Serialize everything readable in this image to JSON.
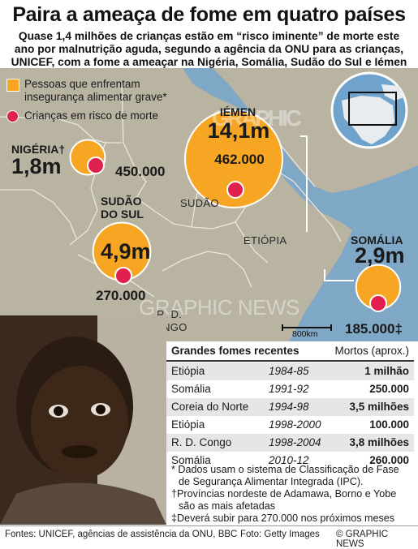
{
  "header": {
    "title": "Paira a ameaça de fome em quatro países",
    "subtitle_lines": [
      "Quase 1,4 milhões de crianças estão em “risco iminente” de morte este",
      "ano por malnutrição aguda, segundo a agência da ONU para as crianças,",
      "UNICEF, com a fome a ameaçar na Nigéria, Somália, Sudão do Sul e Iémen"
    ]
  },
  "legend": {
    "food_insecure": "Pessoas que enfrentam insegurança alimentar grave*",
    "children_risk": "Crianças em risco de morte",
    "colors": {
      "food_insecure": "#f6a623",
      "children_risk": "#e0204f"
    }
  },
  "countries": {
    "nigeria": {
      "name": "NIGÉRIA†",
      "people": "1,8m",
      "people_millions": 1.8,
      "children": "450.000"
    },
    "south_sudan": {
      "name_line1": "SUDÃO",
      "name_line2": "DO SUL",
      "people": "4,9m",
      "people_millions": 4.9,
      "children": "270.000"
    },
    "yemen": {
      "name": "IÉMEN",
      "people": "14,1m",
      "people_millions": 14.1,
      "children": "462.000"
    },
    "somalia": {
      "name": "SOMÁLIA",
      "people": "2,9m",
      "people_millions": 2.9,
      "children": "185.000‡"
    }
  },
  "map_labels": {
    "sudan": "SUDÃO",
    "ethiopia": "ETIÓPIA",
    "drc_line1": "R. D.",
    "drc_line2": "CONGO",
    "scale": "800km"
  },
  "watermark": {
    "line1": "GRAPHIC",
    "line2": "GRAPHIC NEWS"
  },
  "famines_table": {
    "header": {
      "col1": "Grandes fomes recentes",
      "col3": "Mortos (aprox.)"
    },
    "rows": [
      {
        "country": "Etiópia",
        "years": "1984-85",
        "deaths": "1 milhão"
      },
      {
        "country": "Somália",
        "years": "1991-92",
        "deaths": "250.000"
      },
      {
        "country": "Coreia do Norte",
        "years": "1994-98",
        "deaths": "3,5 milhões"
      },
      {
        "country": "Etiópia",
        "years": "1998-2000",
        "deaths": "100.000"
      },
      {
        "country": "R. D. Congo",
        "years": "1998-2004",
        "deaths": "3,8 milhões"
      },
      {
        "country": "Somália",
        "years": "2010-12",
        "deaths": "260.000"
      }
    ]
  },
  "notes": {
    "n1_l1": "* Dados usam o sistema de Classificação de Fase",
    "n1_l2": "de Segurança Alimentar Integrada (IPC).",
    "n2_l1": "†Províncias nordeste de Adamawa, Borno e Yobe",
    "n2_l2": "são as mais afetadas",
    "n3": "‡Deverá subir para 270.000 nos próximos meses"
  },
  "footer": {
    "sources": "Fontes: UNICEF, agências de assistência da ONU, BBC",
    "photo": "Foto: Getty Images",
    "credit": "© GRAPHIC NEWS"
  }
}
